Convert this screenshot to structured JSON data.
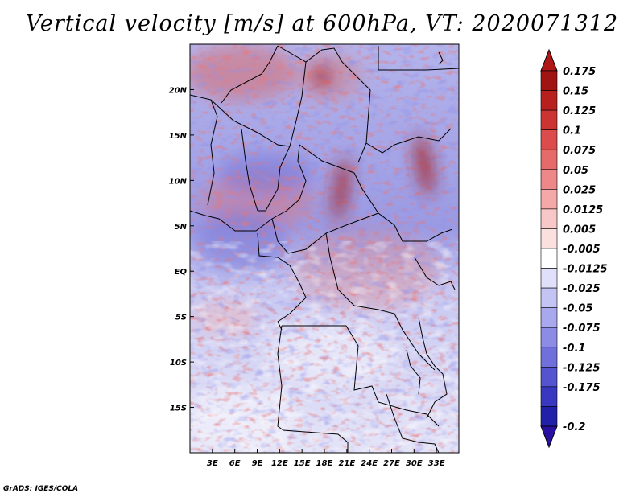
{
  "chart_data": {
    "type": "heatmap",
    "title": "Vertical velocity [m/s] at 600hPa, VT: 2020071312",
    "variable": "Vertical velocity",
    "units": "m/s",
    "level": "600hPa",
    "valid_time": "2020071312",
    "x_range": [
      0,
      36
    ],
    "y_range": [
      -20,
      25
    ],
    "x_ticks": [
      {
        "value": 3,
        "label": "3E"
      },
      {
        "value": 6,
        "label": "6E"
      },
      {
        "value": 9,
        "label": "9E"
      },
      {
        "value": 12,
        "label": "12E"
      },
      {
        "value": 15,
        "label": "15E"
      },
      {
        "value": 18,
        "label": "18E"
      },
      {
        "value": 21,
        "label": "21E"
      },
      {
        "value": 24,
        "label": "24E"
      },
      {
        "value": 27,
        "label": "27E"
      },
      {
        "value": 30,
        "label": "30E"
      },
      {
        "value": 33,
        "label": "33E"
      }
    ],
    "y_ticks": [
      {
        "value": 20,
        "label": "20N"
      },
      {
        "value": 15,
        "label": "15N"
      },
      {
        "value": 10,
        "label": "10N"
      },
      {
        "value": 5,
        "label": "5N"
      },
      {
        "value": 0,
        "label": "EQ"
      },
      {
        "value": -5,
        "label": "5S"
      },
      {
        "value": -10,
        "label": "10S"
      },
      {
        "value": -15,
        "label": "15S"
      }
    ],
    "colorbar": {
      "levels": [
        {
          "label": "0.175",
          "color": "#a01414"
        },
        {
          "label": "0.15",
          "color": "#b82020"
        },
        {
          "label": "0.125",
          "color": "#cc3434"
        },
        {
          "label": "0.1",
          "color": "#dc4c4c"
        },
        {
          "label": "0.075",
          "color": "#e66a6a"
        },
        {
          "label": "0.05",
          "color": "#ee8888"
        },
        {
          "label": "0.025",
          "color": "#f4a8a8"
        },
        {
          "label": "0.0125",
          "color": "#f8c8c8"
        },
        {
          "label": "0.005",
          "color": "#fbe0e0"
        },
        {
          "label": "-0.005",
          "color": "#ffffff"
        },
        {
          "label": "-0.0125",
          "color": "#e0e0fa"
        },
        {
          "label": "-0.025",
          "color": "#c4c4f4"
        },
        {
          "label": "-0.05",
          "color": "#a8a8ee"
        },
        {
          "label": "-0.075",
          "color": "#8c8ce6"
        },
        {
          "label": "-0.1",
          "color": "#7070dc"
        },
        {
          "label": "-0.125",
          "color": "#5454d0"
        },
        {
          "label": "-0.175",
          "color": "#3838c0"
        },
        {
          "label": "-0.2",
          "color": "#2020a8"
        }
      ],
      "top_color": "#b01818",
      "bottom_color": "#2a10a0"
    }
  },
  "credit": "GrADS: IGES/COLA"
}
